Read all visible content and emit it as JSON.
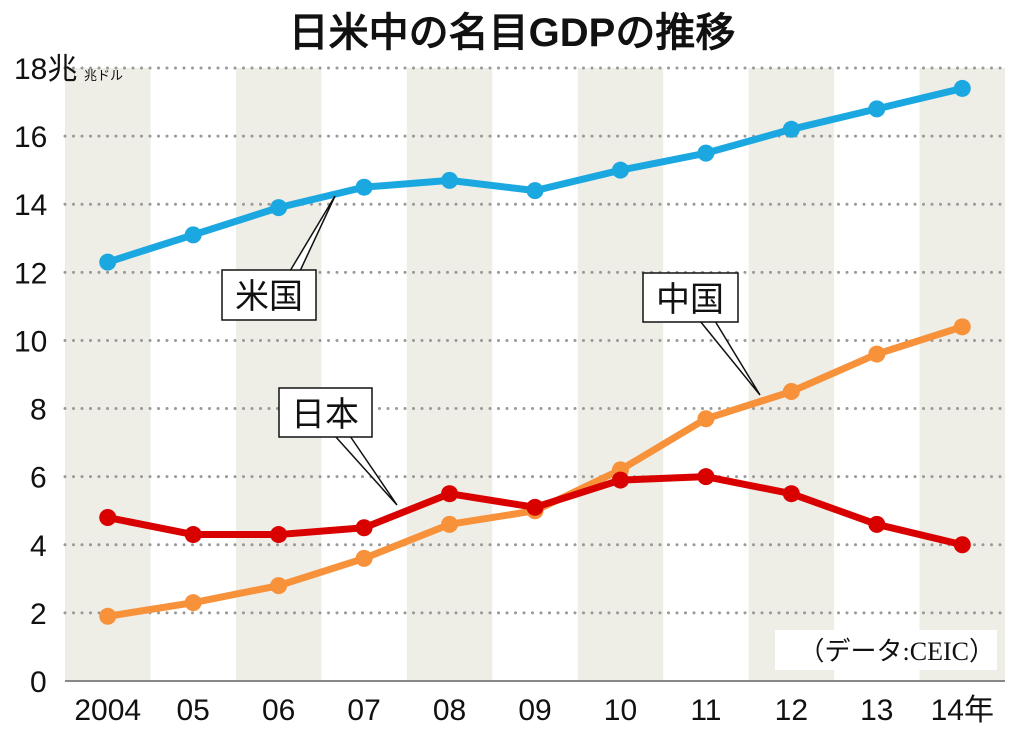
{
  "chart_data": {
    "type": "line",
    "title": "日米中の名目GDPの推移",
    "unit_label": "兆ドル",
    "x_tick_labels": [
      "2004",
      "05",
      "06",
      "07",
      "08",
      "09",
      "10",
      "11",
      "12",
      "13",
      "14年"
    ],
    "x": [
      2004,
      2005,
      2006,
      2007,
      2008,
      2009,
      2010,
      2011,
      2012,
      2013,
      2014
    ],
    "y_ticks": [
      "0",
      "2",
      "4",
      "6",
      "8",
      "10",
      "12",
      "14",
      "16",
      "18"
    ],
    "ylim": [
      0,
      18
    ],
    "grid": "horizontal dotted",
    "source": "（データ:CEIC）",
    "series": [
      {
        "name": "米国",
        "color": "#1ba8e0",
        "values": [
          12.3,
          13.1,
          13.9,
          14.5,
          14.7,
          14.4,
          15.0,
          15.5,
          16.2,
          16.8,
          17.4
        ]
      },
      {
        "name": "中国",
        "color": "#f7913a",
        "values": [
          1.9,
          2.3,
          2.8,
          3.6,
          4.6,
          5.0,
          6.2,
          7.7,
          8.5,
          9.6,
          10.4
        ]
      },
      {
        "name": "日本",
        "color": "#d90000",
        "values": [
          4.8,
          4.3,
          4.3,
          4.5,
          5.5,
          5.1,
          5.9,
          6.0,
          5.5,
          4.6,
          4.0
        ]
      }
    ]
  }
}
